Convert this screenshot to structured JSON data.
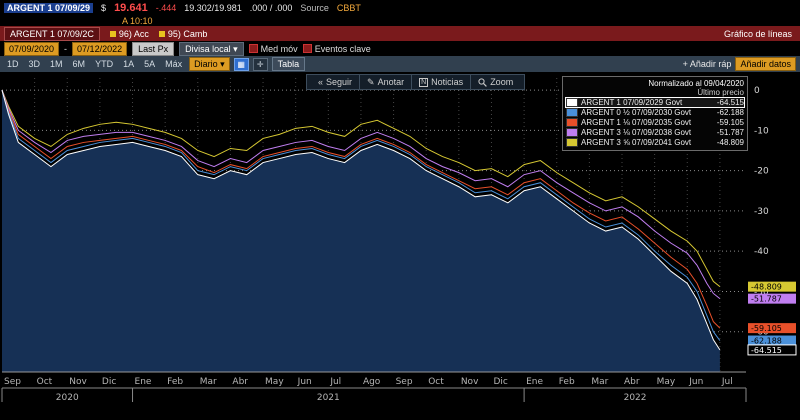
{
  "titlebar": {
    "ticker": "ARGENT 1 07/09/29",
    "currency": "$",
    "price": "19.641",
    "change": "-.444",
    "bid_ask": "19.302/19.981",
    "yields": ".000 / .000",
    "source_label": "Source",
    "source_value": "CBBT",
    "asof": "A 10:10"
  },
  "menubar": {
    "security_tab": "ARGENT 1 07/09/2C",
    "items": [
      "96) Acc",
      "95) Camb"
    ],
    "view_title": "Gráfico de líneas"
  },
  "controls": {
    "date_from": "07/09/2020",
    "date_to": "07/12/2022",
    "date_sep": "-",
    "last_px": "Last Px",
    "currency_select": "Divisa local",
    "currency_caret": "▾",
    "mov_avg": "Med móv",
    "key_events": "Eventos clave"
  },
  "toolbar": {
    "periods": [
      "1D",
      "3D",
      "1M",
      "6M",
      "YTD",
      "1A",
      "5A",
      "Máx"
    ],
    "frequency": "Diario",
    "frequency_caret": "▾",
    "table_label": "Tabla",
    "add_quick": "+ Añadir ráp",
    "add_data": "Añadir datos",
    "chart_tools": [
      "Seguir",
      "Anotar",
      "Noticias",
      "Zoom"
    ]
  },
  "legend": {
    "title": "Normalizado al 09/04/2020",
    "subtitle": "Último precio",
    "items": [
      {
        "name": "ARGENT 1 07/09/2029 Govt",
        "value": "-64.515",
        "color": "#ffffff",
        "selected": true
      },
      {
        "name": "ARGENT 0 ½ 07/09/2030 Govt",
        "value": "-62.188",
        "color": "#4a90d9",
        "selected": false
      },
      {
        "name": "ARGENT 1 ⅛ 07/09/2035 Govt",
        "value": "-59.105",
        "color": "#e8502a",
        "selected": false
      },
      {
        "name": "ARGENT 3 ⅛ 07/09/2038 Govt",
        "value": "-51.787",
        "color": "#c07ef0",
        "selected": false
      },
      {
        "name": "ARGENT 3 ⅝ 07/09/2041 Govt",
        "value": "-48.809",
        "color": "#d6c832",
        "selected": false
      }
    ]
  },
  "chart_data": {
    "type": "line",
    "title": "Normalizado al 09/04/2020",
    "x_unit": "month_index_from_Sep_2020",
    "x_max": 22.8,
    "months": [
      "Sep",
      "Oct",
      "Nov",
      "Dic",
      "Ene",
      "Feb",
      "Mar",
      "Abr",
      "May",
      "Jun",
      "Jul",
      "Ago",
      "Sep",
      "Oct",
      "Nov",
      "Dic",
      "Ene",
      "Feb",
      "Mar",
      "Abr",
      "May",
      "Jun",
      "Jul"
    ],
    "years": [
      {
        "label": "2020",
        "from": 0,
        "to": 4
      },
      {
        "label": "2021",
        "from": 4,
        "to": 16
      },
      {
        "label": "2022",
        "from": 16,
        "to": 22.8
      }
    ],
    "ylim": [
      -70,
      3
    ],
    "yticks": [
      0,
      -10,
      -20,
      -30,
      -40,
      -50,
      -60
    ],
    "area_fill": "#163055",
    "x": [
      0,
      0.2,
      0.5,
      1,
      1.5,
      2,
      2.5,
      3,
      3.5,
      4,
      4.5,
      5,
      5.5,
      6,
      6.5,
      7,
      7.5,
      8,
      8.5,
      9,
      9.5,
      10,
      10.5,
      11,
      11.5,
      12,
      12.5,
      13,
      13.5,
      14,
      14.5,
      15,
      15.5,
      16,
      16.5,
      17,
      17.5,
      18,
      18.5,
      19,
      19.5,
      20,
      20.5,
      21,
      21.3,
      21.6,
      21.8,
      22
    ],
    "series": [
      {
        "name": "ARGENT 1 07/09/2029 Govt",
        "color": "#ffffff",
        "badge_text": "-64.515",
        "badge_bg": "#000000",
        "badge_fg": "#ffffff",
        "badge_border": "#ffffff",
        "values": [
          0,
          -6,
          -13,
          -16,
          -19,
          -16,
          -15,
          -14,
          -13.5,
          -13,
          -14,
          -15,
          -16.5,
          -21,
          -22,
          -20,
          -21,
          -18,
          -17,
          -16,
          -15.5,
          -17,
          -18,
          -15,
          -13.5,
          -15,
          -17,
          -20,
          -22,
          -24,
          -26.5,
          -26,
          -28,
          -25,
          -24,
          -27,
          -30,
          -33,
          -35,
          -34,
          -37,
          -41,
          -45,
          -48,
          -52,
          -58,
          -62,
          -64.515
        ]
      },
      {
        "name": "ARGENT 0 ½ 07/09/2030 Govt",
        "color": "#4a90d9",
        "badge_text": "-62.188",
        "badge_bg": "#4a90d9",
        "badge_fg": "#000000",
        "values": [
          0,
          -5.5,
          -12,
          -15,
          -18,
          -15,
          -14,
          -13,
          -12.5,
          -12,
          -13,
          -14,
          -15.5,
          -20,
          -21,
          -19,
          -20,
          -17,
          -16,
          -15,
          -14.5,
          -16,
          -17,
          -14,
          -12.5,
          -14,
          -16,
          -19,
          -21,
          -23,
          -25.5,
          -25,
          -27,
          -24,
          -23,
          -26,
          -29,
          -32,
          -34,
          -33,
          -36,
          -40,
          -43.5,
          -46.5,
          -50,
          -56,
          -60,
          -62.188
        ]
      },
      {
        "name": "ARGENT 1 ⅛ 07/09/2035 Govt",
        "color": "#e8502a",
        "badge_text": "-59.105",
        "badge_bg": "#e8502a",
        "badge_fg": "#000000",
        "values": [
          0,
          -5,
          -11,
          -14,
          -17,
          -14,
          -13,
          -12.5,
          -12,
          -11.5,
          -12.5,
          -13.5,
          -15,
          -19,
          -20.5,
          -18.5,
          -19.5,
          -16.5,
          -15.5,
          -14.5,
          -14,
          -15.5,
          -16.5,
          -13.5,
          -12,
          -13.5,
          -15.5,
          -18.5,
          -20.5,
          -22.5,
          -24.5,
          -24,
          -26,
          -23,
          -22,
          -25,
          -28,
          -30.5,
          -32.5,
          -31.5,
          -34.5,
          -38,
          -41.5,
          -44.5,
          -48,
          -53.5,
          -57.5,
          -59.105
        ]
      },
      {
        "name": "ARGENT 3 ⅛ 07/09/2038 Govt",
        "color": "#c07ef0",
        "badge_text": "-51.787",
        "badge_bg": "#c07ef0",
        "badge_fg": "#000000",
        "values": [
          0,
          -4.5,
          -10,
          -13,
          -15.5,
          -12.5,
          -11.5,
          -11,
          -10.5,
          -10.5,
          -11.5,
          -12.5,
          -14,
          -17.5,
          -19,
          -17,
          -18,
          -15,
          -14,
          -13,
          -12.5,
          -14,
          -15,
          -12,
          -10.5,
          -12,
          -14,
          -17,
          -19,
          -20.5,
          -22.5,
          -22,
          -24,
          -21,
          -20,
          -23,
          -25.5,
          -28,
          -30,
          -29,
          -31.5,
          -35,
          -38,
          -40.5,
          -43.5,
          -48,
          -50.5,
          -51.787
        ]
      },
      {
        "name": "ARGENT 3 ⅝ 07/09/2041 Govt",
        "color": "#d6c832",
        "badge_text": "-48.809",
        "badge_bg": "#d6c832",
        "badge_fg": "#000000",
        "values": [
          0,
          -4,
          -9,
          -12,
          -14,
          -11,
          -9.5,
          -8.5,
          -8,
          -8.5,
          -9.5,
          -10.5,
          -12,
          -15,
          -16.5,
          -14.5,
          -15,
          -12,
          -11,
          -9.5,
          -9,
          -10.5,
          -11.5,
          -8.5,
          -7.5,
          -9.5,
          -11.5,
          -14.5,
          -16.5,
          -18,
          -20,
          -19.5,
          -21.5,
          -18.5,
          -17.5,
          -20.5,
          -23,
          -25.5,
          -27.5,
          -26.5,
          -29,
          -32,
          -35,
          -37.5,
          -40,
          -44.5,
          -47.5,
          -48.809
        ]
      }
    ]
  }
}
